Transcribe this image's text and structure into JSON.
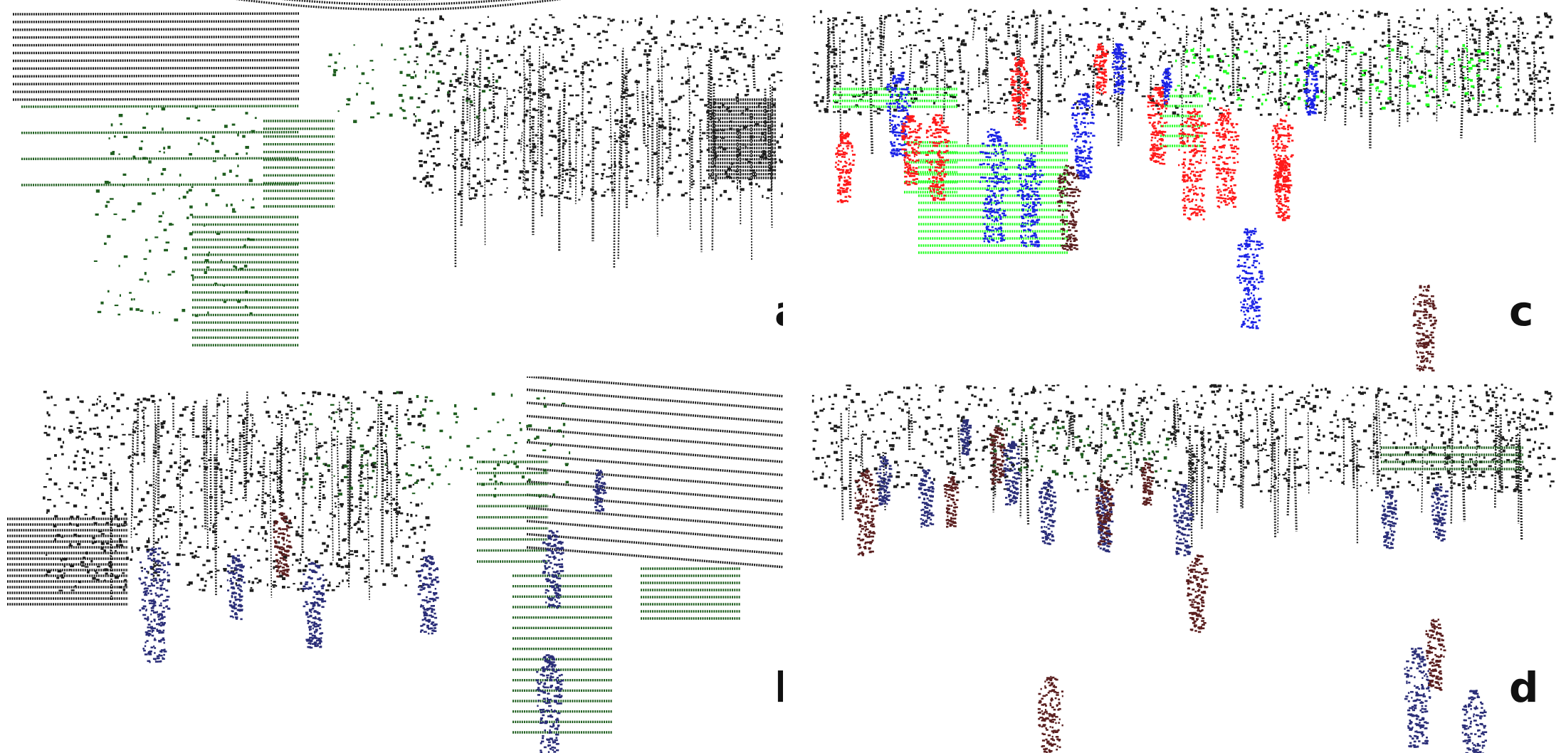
{
  "figure": {
    "panels": [
      {
        "id": "a",
        "label": "a",
        "palette": [
          "#1f5e1f"
        ]
      },
      {
        "id": "b",
        "label": "b",
        "palette": [
          "#1f5e1f",
          "#2b2e78",
          "#5a1f1f"
        ]
      },
      {
        "id": "c",
        "label": "c",
        "palette": [
          "#22ff22",
          "#1a22e6",
          "#ff1a1a",
          "#5a1f1f",
          "#2b2e78"
        ]
      },
      {
        "id": "d",
        "label": "d",
        "palette": [
          "#1f5e1f",
          "#2b2e78",
          "#5a1f1f"
        ]
      }
    ],
    "colors": {
      "scan_line": "#1e1e1e",
      "background": "#ffffff",
      "dark_green": "#1f5e1f",
      "navy": "#2b2e78",
      "dark_red": "#5a1f1f",
      "bright_green": "#22ff22",
      "bright_blue": "#1a22e6",
      "bright_red": "#ff1a1a"
    }
  }
}
